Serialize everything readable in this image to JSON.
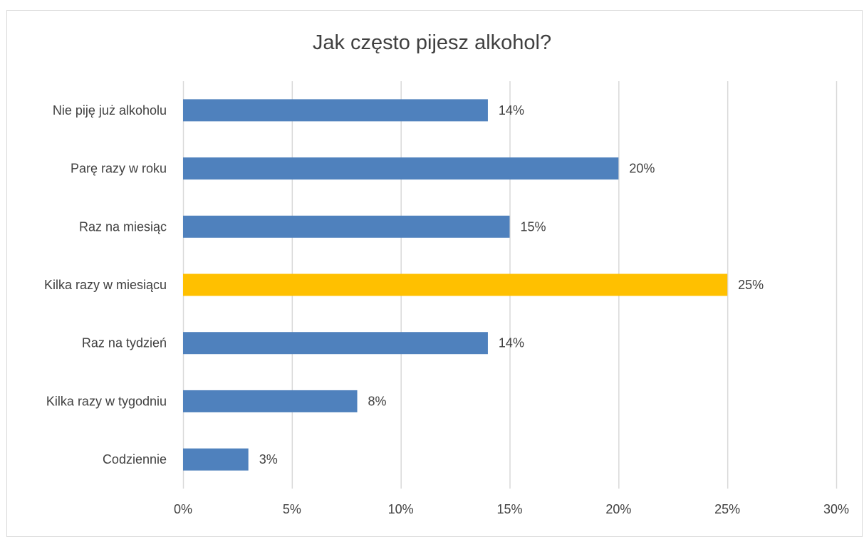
{
  "chart_data": {
    "type": "bar",
    "orientation": "horizontal",
    "title": "Jak często pijesz alkohol?",
    "categories": [
      "Nie piję już alkoholu",
      "Parę razy w roku",
      "Raz na miesiąc",
      "Kilka razy w miesiącu",
      "Raz na tydzień",
      "Kilka razy w tygodniu",
      "Codziennie"
    ],
    "values": [
      14,
      20,
      15,
      25,
      14,
      8,
      3
    ],
    "data_labels": [
      "14%",
      "20%",
      "15%",
      "25%",
      "14%",
      "8%",
      "3%"
    ],
    "xlim": [
      0,
      30
    ],
    "x_ticks": [
      0,
      5,
      10,
      15,
      20,
      25,
      30
    ],
    "x_tick_labels": [
      "0%",
      "5%",
      "10%",
      "15%",
      "20%",
      "25%",
      "30%"
    ],
    "grid": "vertical",
    "legend": "none",
    "bar_color": "#4f81bd",
    "highlight_color": "#ffc000",
    "highlight_category": "Kilka razy w miesiącu",
    "gridline_color": "#d9d9d9"
  }
}
